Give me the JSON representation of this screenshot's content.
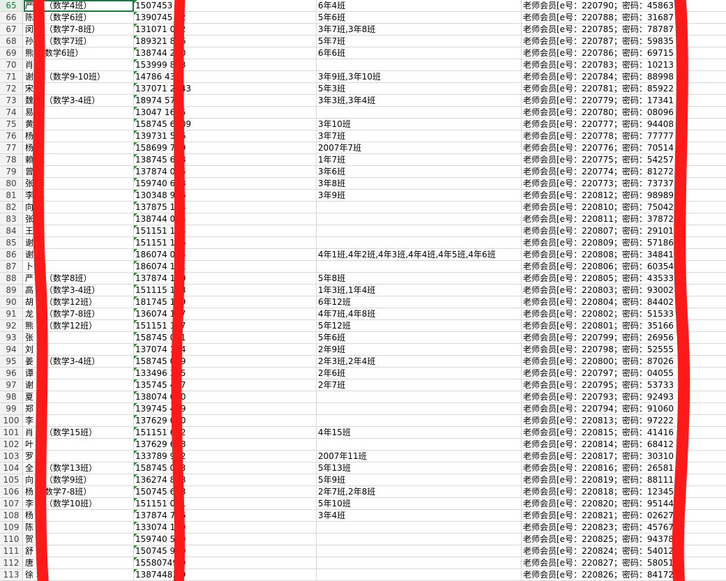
{
  "sheet": {
    "rows": [
      {
        "num": "65",
        "name": "严 芬（数学4班）",
        "phone": "1507453 9",
        "classes": "6年4班",
        "info": "老师会员[e号：220790；密码：45863"
      },
      {
        "num": "66",
        "name": "陈 飞（数学6班）",
        "phone": "1390745 52",
        "classes": "5年6班",
        "info": "老师会员[e号：220788；密码：31687"
      },
      {
        "num": "67",
        "name": "闵 莲（数学7-8班）",
        "phone": "131071 082",
        "classes": "3年7班,3年8班",
        "info": "老师会员[e号：220785；密码：78787"
      },
      {
        "num": "68",
        "name": "孙 云（数学7班）",
        "phone": "189321 866",
        "classes": "5年7班",
        "info": "老师会员[e号：220787；密码：59835"
      },
      {
        "num": "69",
        "name": "熊 （数学6班）",
        "phone": "138744 290",
        "classes": "6年6班",
        "info": "老师会员[e号：220786；密码：69715"
      },
      {
        "num": "70",
        "name": "肖 琳",
        "phone": "153999 833",
        "classes": "",
        "info": "老师会员[e号：220783；密码：10213"
      },
      {
        "num": "71",
        "name": "谢 云（数学9-10班）",
        "phone": "14786 433",
        "classes": "3年9班,3年10班",
        "info": "老师会员[e号：220784；密码：88998"
      },
      {
        "num": "72",
        "name": "宋 荣",
        "phone": "137071 2843",
        "classes": "5年3班",
        "info": "老师会员[e号：220781；密码：85922"
      },
      {
        "num": "73",
        "name": "魏 梅（数学3-4班）",
        "phone": "18974 573",
        "classes": "3年3班,3年4班",
        "info": "老师会员[e号：220779；密码：17341"
      },
      {
        "num": "74",
        "name": "易 芳",
        "phone": "13047 1685",
        "classes": "",
        "info": "老师会员[e号：220780；密码：08096"
      },
      {
        "num": "75",
        "name": "黄 平",
        "phone": "158745 6109",
        "classes": "3年10班",
        "info": "老师会员[e号：220777；密码：94408"
      },
      {
        "num": "76",
        "name": "杨 玲",
        "phone": "139731 586",
        "classes": "3年7班",
        "info": "老师会员[e号：220778；密码：77777"
      },
      {
        "num": "77",
        "name": "杨",
        "phone": "158699 789",
        "classes": "2007年7班",
        "info": "老师会员[e号：220776；密码：70514"
      },
      {
        "num": "78",
        "name": "赖 艳",
        "phone": "138745 698",
        "classes": "1年7班",
        "info": "老师会员[e号：220775；密码：54257"
      },
      {
        "num": "79",
        "name": "曾",
        "phone": "137874 065",
        "classes": "3年6班",
        "info": "老师会员[e号：220774；密码：81272"
      },
      {
        "num": "80",
        "name": "张 华",
        "phone": "159740 618",
        "classes": "3年8班",
        "info": "老师会员[e号：220773；密码：73737"
      },
      {
        "num": "81",
        "name": "李 英",
        "phone": "130348 956",
        "classes": "3年9班",
        "info": "老师会员[e号：220812；密码：98989"
      },
      {
        "num": "82",
        "name": "向 丽",
        "phone": "137875 124",
        "classes": "",
        "info": "老师会员[e号：220810；密码：75042"
      },
      {
        "num": "83",
        "name": "张",
        "phone": "138744 075",
        "classes": "",
        "info": "老师会员[e号：220811；密码：37872"
      },
      {
        "num": "84",
        "name": "王",
        "phone": "151151 124",
        "classes": "",
        "info": "老师会员[e号：220807；密码：29101"
      },
      {
        "num": "85",
        "name": "谢 艳",
        "phone": "151151 126",
        "classes": "",
        "info": "老师会员[e号：220809；密码：57186"
      },
      {
        "num": "86",
        "name": "谢",
        "phone": "186074 055",
        "classes": "4年1班,4年2班,4年3班,4年4班,4年5班,4年6班",
        "info": "老师会员[e号：220808；密码：34841"
      },
      {
        "num": "87",
        "name": "卜",
        "phone": "186074 111",
        "classes": "",
        "info": "老师会员[e号：220806；密码：60354"
      },
      {
        "num": "88",
        "name": "严 斌（数学8班）",
        "phone": "137874 130",
        "classes": "5年8班",
        "info": "老师会员[e号：220805；密码：43533"
      },
      {
        "num": "89",
        "name": "高 翠（数学3-4班）",
        "phone": "151115 198",
        "classes": "1年3班,1年4班",
        "info": "老师会员[e号：220803；密码：93002"
      },
      {
        "num": "90",
        "name": "胡 平（数学12班）",
        "phone": "181745 129",
        "classes": "6年12班",
        "info": "老师会员[e号：220804；密码：84402"
      },
      {
        "num": "91",
        "name": "龙 虹（数学7-8班）",
        "phone": "136074 117",
        "classes": "4年7班,4年8班",
        "info": "老师会员[e号：220802；密码：51533"
      },
      {
        "num": "92",
        "name": "熊 华（数学12班）",
        "phone": "151151 117",
        "classes": "5年12班",
        "info": "老师会员[e号：220801；密码：35166"
      },
      {
        "num": "93",
        "name": "张 华",
        "phone": "158745 051",
        "classes": "5年6班",
        "info": "老师会员[e号：220799；密码：26956"
      },
      {
        "num": "94",
        "name": "刘 丽",
        "phone": "137074 134",
        "classes": "2年9班",
        "info": "老师会员[e号：220798；密码：52555"
      },
      {
        "num": "95",
        "name": "姜 珍（数学3-4班）",
        "phone": "158745 069",
        "classes": "2年3班,2年4班",
        "info": "老师会员[e号：220800；密码：87026"
      },
      {
        "num": "96",
        "name": "谭 平",
        "phone": "133496 365",
        "classes": "2年6班",
        "info": "老师会员[e号：220797；密码：04055"
      },
      {
        "num": "97",
        "name": "谢 芝",
        "phone": "135745 427",
        "classes": "2年7班",
        "info": "老师会员[e号：220795；密码：53733"
      },
      {
        "num": "98",
        "name": "夏 亭",
        "phone": "138074 090",
        "classes": "",
        "info": "老师会员[e号：220793；密码：92493"
      },
      {
        "num": "99",
        "name": "郑 萍",
        "phone": "139745 459",
        "classes": "",
        "info": "老师会员[e号：220794；密码：91060"
      },
      {
        "num": "100",
        "name": "李 军",
        "phone": "137629 070",
        "classes": "",
        "info": "老师会员[e号：220813；密码：97222"
      },
      {
        "num": "101",
        "name": "肖 兰（数学15班）",
        "phone": "151151 692",
        "classes": "4年15班",
        "info": "老师会员[e号：220815；密码：41416"
      },
      {
        "num": "102",
        "name": "叶 妃",
        "phone": "137629 618",
        "classes": "",
        "info": "老师会员[e号：220814；密码：68412"
      },
      {
        "num": "103",
        "name": "罗 金",
        "phone": "133789 932",
        "classes": "2007年11班",
        "info": "老师会员[e号：220817；密码：30310"
      },
      {
        "num": "104",
        "name": "全 英（数学13班）",
        "phone": "158745 003",
        "classes": "5年13班",
        "info": "老师会员[e号：220816；密码：26581"
      },
      {
        "num": "105",
        "name": "向 英（数学9班）",
        "phone": "136274 888",
        "classes": "5年9班",
        "info": "老师会员[e号：220819；密码：88111"
      },
      {
        "num": "106",
        "name": "杨 （数学7-8班）",
        "phone": "150745 628",
        "classes": "2年7班,2年8班",
        "info": "老师会员[e号：220818；密码：12345"
      },
      {
        "num": "107",
        "name": "李 义（数学10班）",
        "phone": "151151 081",
        "classes": "5年10班",
        "info": "老师会员[e号：220820；密码：95144"
      },
      {
        "num": "108",
        "name": "杨 云",
        "phone": "137874 756",
        "classes": "3年4班",
        "info": "老师会员[e号：220821；密码：02627"
      },
      {
        "num": "109",
        "name": "陈",
        "phone": "133074 189",
        "classes": "",
        "info": "老师会员[e号：220823；密码：45767"
      },
      {
        "num": "110",
        "name": "贺 婷",
        "phone": "159740 589",
        "classes": "",
        "info": "老师会员[e号：220825；密码：94378"
      },
      {
        "num": "111",
        "name": "舒 元",
        "phone": "150745 960",
        "classes": "",
        "info": "老师会员[e号：220824；密码：54012"
      },
      {
        "num": "112",
        "name": "唐 林",
        "phone": "15580749 9",
        "classes": "",
        "info": "老师会员[e号：220827；密码：58051"
      },
      {
        "num": "113",
        "name": "徐 君",
        "phone": "13874483 9",
        "classes": "",
        "info": "老师会员[e号：220826；密码：84172"
      }
    ]
  },
  "colors": {
    "redaction": "#ff1a1a",
    "selection": "#217346",
    "comment_marker": "#2e8b3d"
  }
}
